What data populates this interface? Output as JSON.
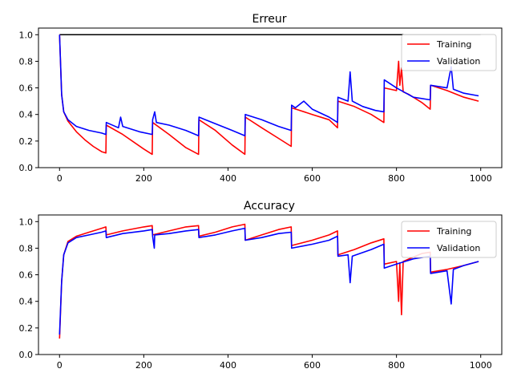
{
  "chart_data": [
    {
      "type": "line",
      "title": "Erreur",
      "xlabel": "",
      "ylabel": "",
      "xlim": [
        -50,
        1050
      ],
      "ylim": [
        0.0,
        1.05
      ],
      "xticks": [
        0,
        200,
        400,
        600,
        800,
        1000
      ],
      "xtick_labels": [
        "0",
        "200",
        "400",
        "600",
        "800",
        "1000"
      ],
      "yticks": [
        0.0,
        0.2,
        0.4,
        0.6,
        0.8,
        1.0
      ],
      "ytick_labels": [
        "0.0",
        "0.2",
        "0.4",
        "0.6",
        "0.8",
        "1.0"
      ],
      "grid": false,
      "legend_position": "top-right",
      "reference_line": {
        "y": 1.0,
        "x": [
          0,
          1000
        ],
        "color": "#000000"
      },
      "series": [
        {
          "name": "Training",
          "color": "#ff0000",
          "x": [
            0,
            5,
            10,
            20,
            40,
            60,
            80,
            100,
            110,
            111,
            150,
            200,
            220,
            221,
            260,
            300,
            330,
            331,
            370,
            410,
            440,
            441,
            480,
            520,
            550,
            551,
            600,
            640,
            660,
            661,
            700,
            740,
            770,
            771,
            800,
            805,
            808,
            812,
            816,
            830,
            860,
            880,
            881,
            920,
            960,
            995
          ],
          "y": [
            1.0,
            0.55,
            0.42,
            0.35,
            0.27,
            0.21,
            0.16,
            0.12,
            0.11,
            0.32,
            0.25,
            0.14,
            0.1,
            0.34,
            0.25,
            0.15,
            0.1,
            0.36,
            0.28,
            0.17,
            0.1,
            0.38,
            0.3,
            0.22,
            0.16,
            0.45,
            0.4,
            0.36,
            0.3,
            0.5,
            0.46,
            0.4,
            0.34,
            0.6,
            0.58,
            0.8,
            0.62,
            0.75,
            0.57,
            0.55,
            0.49,
            0.44,
            0.62,
            0.58,
            0.53,
            0.5
          ]
        },
        {
          "name": "Validation",
          "color": "#0000ff",
          "x": [
            0,
            5,
            10,
            20,
            40,
            70,
            100,
            110,
            111,
            140,
            145,
            150,
            190,
            220,
            221,
            226,
            230,
            260,
            300,
            330,
            331,
            370,
            410,
            440,
            441,
            480,
            520,
            550,
            551,
            560,
            580,
            600,
            640,
            660,
            661,
            685,
            690,
            695,
            720,
            750,
            770,
            771,
            800,
            840,
            880,
            881,
            920,
            930,
            935,
            960,
            995
          ],
          "y": [
            1.0,
            0.55,
            0.42,
            0.36,
            0.31,
            0.28,
            0.26,
            0.25,
            0.34,
            0.3,
            0.38,
            0.31,
            0.27,
            0.25,
            0.36,
            0.42,
            0.34,
            0.32,
            0.28,
            0.24,
            0.38,
            0.33,
            0.28,
            0.24,
            0.4,
            0.36,
            0.31,
            0.28,
            0.47,
            0.45,
            0.5,
            0.44,
            0.38,
            0.34,
            0.53,
            0.5,
            0.72,
            0.5,
            0.46,
            0.43,
            0.42,
            0.66,
            0.6,
            0.53,
            0.51,
            0.62,
            0.6,
            0.76,
            0.59,
            0.56,
            0.54
          ]
        }
      ]
    },
    {
      "type": "line",
      "title": "Accuracy",
      "xlabel": "",
      "ylabel": "",
      "xlim": [
        -50,
        1050
      ],
      "ylim": [
        0.0,
        1.05
      ],
      "xticks": [
        0,
        200,
        400,
        600,
        800,
        1000
      ],
      "xtick_labels": [
        "0",
        "200",
        "400",
        "600",
        "800",
        "1000"
      ],
      "yticks": [
        0.0,
        0.2,
        0.4,
        0.6,
        0.8,
        1.0
      ],
      "ytick_labels": [
        "0.0",
        "0.2",
        "0.4",
        "0.6",
        "0.8",
        "1.0"
      ],
      "grid": false,
      "legend_position": "top-right",
      "series": [
        {
          "name": "Training",
          "color": "#ff0000",
          "x": [
            0,
            5,
            10,
            20,
            40,
            70,
            100,
            110,
            111,
            150,
            200,
            220,
            221,
            260,
            300,
            330,
            331,
            370,
            410,
            440,
            441,
            480,
            520,
            550,
            551,
            600,
            640,
            660,
            661,
            700,
            740,
            770,
            771,
            800,
            805,
            808,
            812,
            816,
            830,
            860,
            880,
            881,
            920,
            960,
            995
          ],
          "y": [
            0.12,
            0.55,
            0.75,
            0.85,
            0.89,
            0.92,
            0.95,
            0.96,
            0.9,
            0.93,
            0.96,
            0.97,
            0.9,
            0.93,
            0.96,
            0.97,
            0.89,
            0.92,
            0.96,
            0.98,
            0.86,
            0.9,
            0.94,
            0.96,
            0.82,
            0.86,
            0.9,
            0.93,
            0.75,
            0.79,
            0.84,
            0.87,
            0.68,
            0.7,
            0.4,
            0.69,
            0.3,
            0.7,
            0.72,
            0.76,
            0.77,
            0.62,
            0.64,
            0.67,
            0.7
          ]
        },
        {
          "name": "Validation",
          "color": "#0000ff",
          "x": [
            0,
            5,
            10,
            20,
            40,
            70,
            100,
            110,
            111,
            150,
            200,
            220,
            221,
            225,
            226,
            260,
            300,
            330,
            331,
            370,
            410,
            440,
            441,
            480,
            520,
            550,
            551,
            600,
            640,
            660,
            661,
            685,
            690,
            695,
            740,
            770,
            771,
            800,
            840,
            880,
            881,
            920,
            930,
            935,
            960,
            995
          ],
          "y": [
            0.15,
            0.55,
            0.75,
            0.84,
            0.88,
            0.9,
            0.92,
            0.93,
            0.88,
            0.91,
            0.93,
            0.94,
            0.89,
            0.8,
            0.9,
            0.91,
            0.93,
            0.94,
            0.88,
            0.9,
            0.93,
            0.95,
            0.86,
            0.88,
            0.91,
            0.92,
            0.8,
            0.83,
            0.86,
            0.89,
            0.74,
            0.75,
            0.54,
            0.74,
            0.79,
            0.83,
            0.65,
            0.68,
            0.72,
            0.74,
            0.61,
            0.63,
            0.38,
            0.64,
            0.67,
            0.7
          ]
        }
      ]
    }
  ]
}
